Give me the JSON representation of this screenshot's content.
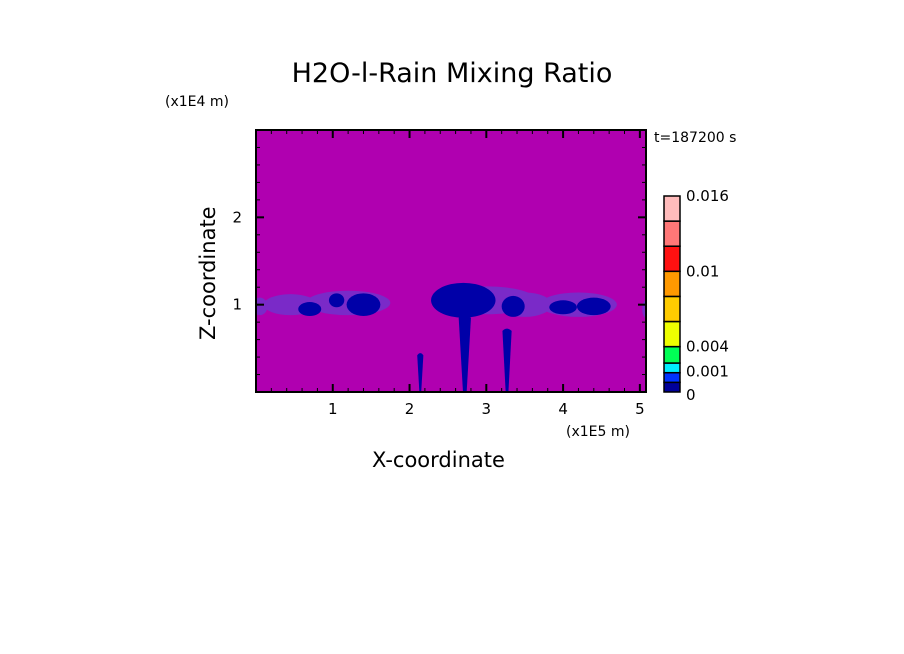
{
  "chart_data": {
    "type": "heatmap",
    "title": "H2O-l-Rain Mixing Ratio",
    "time_label": "t=187200 s",
    "xlabel": "X-coordinate",
    "ylabel": "Z-coordinate",
    "x_unit": "(x1E5 m)",
    "y_unit": "(x1E4 m)",
    "xlim": [
      0,
      5.08
    ],
    "ylim": [
      0,
      3.0
    ],
    "xticks": [
      1,
      2,
      3,
      4,
      5
    ],
    "yticks": [
      1,
      2
    ],
    "background_color": "#b000b0",
    "colorbar": {
      "levels": [
        0,
        0.001,
        0.002,
        0.003,
        0.004,
        0.006,
        0.008,
        0.01,
        0.012,
        0.014,
        0.016
      ],
      "colors": [
        "#000099",
        "#0033ff",
        "#00eeff",
        "#00ff55",
        "#eeff00",
        "#ffcc00",
        "#ff9900",
        "#ff1111",
        "#ff7777",
        "#ffbbbb"
      ],
      "labels": [
        "0",
        "0.001",
        "0.004",
        "0.01",
        "0.016"
      ]
    },
    "field_colors": {
      "low": "#7a2ac8",
      "mid": "#0000a8"
    }
  }
}
